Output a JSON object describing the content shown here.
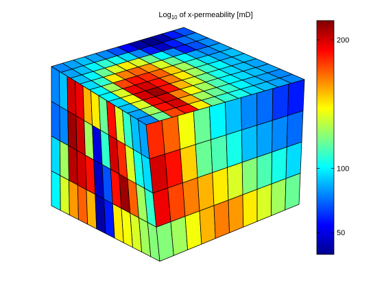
{
  "chart_data": {
    "type": "heatmap",
    "title": {
      "prefix": "Log",
      "subscript": "10",
      "suffix": " of x-permeability [mD]"
    },
    "view": "3D block model (cube of cells)",
    "colormap": "jet",
    "colorbar": {
      "location": "right",
      "ticks": [
        50,
        100,
        200
      ],
      "range": [
        33,
        215
      ]
    },
    "grid": {
      "front_face": {
        "columns": 12,
        "layers": 4
      },
      "right_face": {
        "columns": 10,
        "layers": 4
      },
      "top_face": {
        "rows": 10,
        "columns": 12
      }
    },
    "front_face_values": [
      [
        80,
        90,
        200,
        195,
        160,
        150,
        120,
        190,
        140,
        110,
        90,
        85
      ],
      [
        75,
        80,
        210,
        200,
        130,
        50,
        110,
        200,
        185,
        140,
        105,
        95
      ],
      [
        95,
        130,
        205,
        200,
        190,
        45,
        70,
        190,
        210,
        175,
        130,
        110
      ],
      [
        100,
        140,
        165,
        175,
        160,
        40,
        60,
        150,
        145,
        140,
        130,
        125
      ]
    ],
    "right_face_values": [
      [
        185,
        175,
        145,
        120,
        100,
        90,
        80,
        75,
        65,
        60
      ],
      [
        200,
        190,
        155,
        120,
        115,
        105,
        90,
        85,
        80,
        75
      ],
      [
        195,
        180,
        170,
        160,
        150,
        140,
        125,
        115,
        105,
        95
      ],
      [
        125,
        130,
        145,
        160,
        170,
        165,
        150,
        140,
        130,
        120
      ]
    ],
    "top_face_values": [
      [
        80,
        85,
        90,
        85,
        80,
        70,
        55,
        40,
        35,
        40,
        60,
        70
      ],
      [
        85,
        90,
        100,
        110,
        105,
        95,
        80,
        60,
        45,
        60,
        75,
        80
      ],
      [
        90,
        100,
        120,
        140,
        150,
        140,
        120,
        100,
        80,
        60,
        70,
        80
      ],
      [
        95,
        110,
        150,
        170,
        175,
        165,
        140,
        120,
        100,
        85,
        80,
        85
      ],
      [
        100,
        130,
        180,
        190,
        185,
        175,
        155,
        130,
        110,
        95,
        85,
        90
      ],
      [
        100,
        140,
        195,
        200,
        190,
        170,
        150,
        130,
        110,
        100,
        90,
        90
      ],
      [
        95,
        145,
        200,
        210,
        190,
        160,
        140,
        120,
        105,
        95,
        90,
        85
      ],
      [
        90,
        140,
        195,
        200,
        170,
        145,
        130,
        115,
        100,
        95,
        90,
        85
      ],
      [
        85,
        130,
        190,
        200,
        160,
        130,
        120,
        110,
        100,
        90,
        85,
        80
      ],
      [
        80,
        120,
        180,
        190,
        150,
        120,
        110,
        105,
        95,
        90,
        85,
        80
      ]
    ]
  }
}
